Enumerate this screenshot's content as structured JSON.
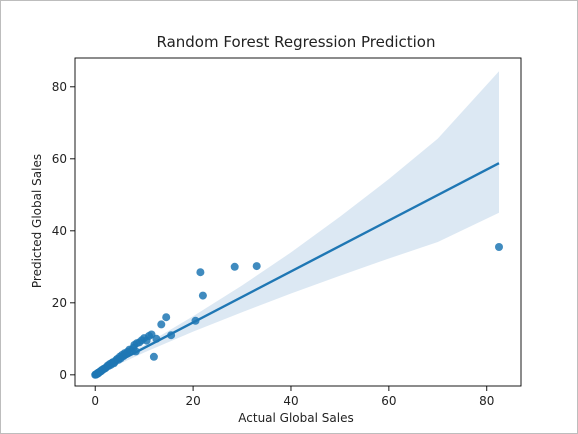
{
  "chart_data": {
    "type": "scatter",
    "title": "Random Forest Regression Prediction",
    "xlabel": "Actual Global Sales",
    "ylabel": "Predicted Global Sales",
    "xlim": [
      -4.13,
      87.0
    ],
    "ylim": [
      -3.1,
      88.0
    ],
    "xticks": [
      0,
      20,
      40,
      60,
      80
    ],
    "yticks": [
      0,
      20,
      40,
      60,
      80
    ],
    "grid": false,
    "colors": {
      "points": "#1f77b4",
      "line": "#1f77b4",
      "band": "#d6e4f1"
    },
    "points": [
      [
        0.0,
        0.0
      ],
      [
        0.1,
        0.1
      ],
      [
        0.2,
        0.1
      ],
      [
        0.3,
        0.2
      ],
      [
        0.4,
        0.3
      ],
      [
        0.5,
        0.5
      ],
      [
        0.6,
        0.4
      ],
      [
        0.7,
        0.6
      ],
      [
        0.8,
        0.7
      ],
      [
        0.9,
        0.8
      ],
      [
        1.0,
        0.9
      ],
      [
        1.1,
        1.0
      ],
      [
        1.2,
        1.0
      ],
      [
        1.3,
        1.3
      ],
      [
        1.5,
        1.4
      ],
      [
        1.6,
        1.5
      ],
      [
        1.8,
        1.7
      ],
      [
        2.0,
        1.8
      ],
      [
        2.2,
        2.0
      ],
      [
        2.4,
        2.3
      ],
      [
        2.6,
        2.6
      ],
      [
        2.8,
        2.5
      ],
      [
        3.0,
        3.0
      ],
      [
        3.2,
        2.8
      ],
      [
        3.4,
        3.3
      ],
      [
        3.6,
        3.5
      ],
      [
        3.8,
        3.2
      ],
      [
        4.0,
        3.6
      ],
      [
        4.2,
        4.0
      ],
      [
        4.5,
        4.4
      ],
      [
        4.8,
        4.2
      ],
      [
        5.0,
        5.0
      ],
      [
        5.2,
        4.6
      ],
      [
        5.5,
        5.5
      ],
      [
        5.8,
        5.2
      ],
      [
        6.0,
        6.0
      ],
      [
        6.3,
        5.8
      ],
      [
        6.6,
        6.4
      ],
      [
        7.0,
        7.0
      ],
      [
        7.4,
        6.8
      ],
      [
        7.8,
        7.5
      ],
      [
        8.0,
        8.3
      ],
      [
        8.3,
        6.5
      ],
      [
        8.5,
        8.8
      ],
      [
        9.0,
        9.0
      ],
      [
        9.5,
        9.6
      ],
      [
        10.0,
        10.2
      ],
      [
        10.5,
        9.5
      ],
      [
        11.0,
        10.8
      ],
      [
        11.5,
        11.2
      ],
      [
        12.0,
        5.0
      ],
      [
        12.5,
        10.0
      ],
      [
        13.5,
        14.0
      ],
      [
        14.5,
        16.0
      ],
      [
        15.5,
        11.0
      ],
      [
        20.5,
        15.0
      ],
      [
        21.5,
        28.5
      ],
      [
        22.0,
        22.0
      ],
      [
        28.5,
        30.0
      ],
      [
        33.0,
        30.2
      ],
      [
        82.5,
        35.5
      ]
    ],
    "regression_line": [
      [
        0.0,
        0.4
      ],
      [
        82.5,
        58.8
      ]
    ],
    "confidence_band": {
      "x": [
        0.0,
        10.0,
        20.0,
        30.0,
        40.0,
        50.0,
        60.0,
        70.0,
        82.5
      ],
      "upper": [
        0.9,
        8.2,
        16.3,
        24.8,
        34.0,
        43.9,
        54.4,
        65.6,
        84.3
      ],
      "lower": [
        -0.1,
        6.2,
        12.0,
        17.4,
        22.6,
        27.5,
        32.3,
        36.9,
        45.0
      ]
    }
  }
}
